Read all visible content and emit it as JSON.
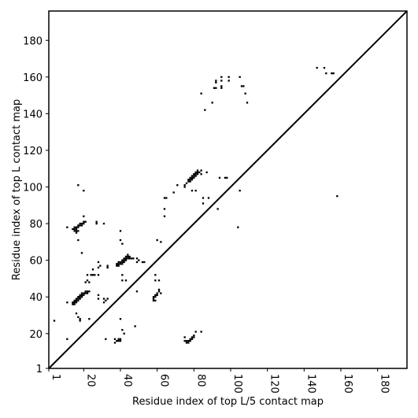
{
  "chart_data": {
    "type": "scatter",
    "xlabel": "Residue index of top L/5 contact map",
    "ylabel": "Residue index of top L contact map",
    "xlim": [
      1,
      196
    ],
    "ylim": [
      1,
      196
    ],
    "x_ticks": [
      1,
      20,
      40,
      60,
      80,
      100,
      120,
      140,
      160,
      180
    ],
    "y_ticks": [
      1,
      20,
      40,
      60,
      80,
      100,
      120,
      140,
      160,
      180
    ],
    "diagonal": true,
    "grid": false,
    "colors": {
      "marker": "#000000",
      "frame": "#000000",
      "background": "#ffffff"
    },
    "series": [
      {
        "points": [
          [
            4,
            27
          ],
          [
            11,
            17
          ],
          [
            11,
            37
          ],
          [
            11,
            78
          ],
          [
            14,
            36
          ],
          [
            14,
            37
          ],
          [
            15,
            36
          ],
          [
            15,
            37
          ],
          [
            15,
            38
          ],
          [
            16,
            37
          ],
          [
            16,
            38
          ],
          [
            16,
            39
          ],
          [
            17,
            38
          ],
          [
            17,
            39
          ],
          [
            17,
            40
          ],
          [
            18,
            39
          ],
          [
            18,
            40
          ],
          [
            18,
            41
          ],
          [
            19,
            40
          ],
          [
            19,
            41
          ],
          [
            19,
            42
          ],
          [
            20,
            41
          ],
          [
            20,
            42
          ],
          [
            21,
            42
          ],
          [
            21,
            43
          ],
          [
            22,
            42
          ],
          [
            22,
            43
          ],
          [
            23,
            43
          ],
          [
            14,
            77
          ],
          [
            15,
            76
          ],
          [
            15,
            77
          ],
          [
            15,
            78
          ],
          [
            16,
            75
          ],
          [
            16,
            76
          ],
          [
            16,
            77
          ],
          [
            16,
            78
          ],
          [
            17,
            76
          ],
          [
            17,
            78
          ],
          [
            17,
            79
          ],
          [
            18,
            79
          ],
          [
            18,
            80
          ],
          [
            19,
            79
          ],
          [
            19,
            80
          ],
          [
            20,
            80
          ],
          [
            20,
            81
          ],
          [
            21,
            81
          ],
          [
            16,
            31
          ],
          [
            17,
            29
          ],
          [
            18,
            27
          ],
          [
            18,
            28
          ],
          [
            20,
            84
          ],
          [
            20,
            98
          ],
          [
            17,
            101
          ],
          [
            17,
            71
          ],
          [
            19,
            64
          ],
          [
            21,
            48
          ],
          [
            22,
            49
          ],
          [
            22,
            52
          ],
          [
            23,
            48
          ],
          [
            24,
            52
          ],
          [
            25,
            52
          ],
          [
            25,
            55
          ],
          [
            26,
            52
          ],
          [
            27,
            81
          ],
          [
            27,
            80
          ],
          [
            28,
            56
          ],
          [
            28,
            59
          ],
          [
            28,
            52
          ],
          [
            29,
            57
          ],
          [
            28,
            41
          ],
          [
            28,
            39
          ],
          [
            31,
            80
          ],
          [
            32,
            17
          ],
          [
            31,
            37
          ],
          [
            31,
            39
          ],
          [
            32,
            38
          ],
          [
            33,
            39
          ],
          [
            33,
            56
          ],
          [
            33,
            57
          ],
          [
            23,
            28
          ],
          [
            37,
            15
          ],
          [
            37,
            17
          ],
          [
            38,
            16
          ],
          [
            39,
            16
          ],
          [
            39,
            17
          ],
          [
            40,
            16
          ],
          [
            40,
            17
          ],
          [
            40,
            28
          ],
          [
            40,
            71
          ],
          [
            40,
            76
          ],
          [
            41,
            22
          ],
          [
            42,
            20
          ],
          [
            38,
            57
          ],
          [
            38,
            58
          ],
          [
            39,
            57
          ],
          [
            39,
            58
          ],
          [
            39,
            59
          ],
          [
            40,
            58
          ],
          [
            40,
            59
          ],
          [
            41,
            58
          ],
          [
            41,
            59
          ],
          [
            41,
            60
          ],
          [
            42,
            59
          ],
          [
            42,
            60
          ],
          [
            42,
            61
          ],
          [
            43,
            60
          ],
          [
            43,
            61
          ],
          [
            43,
            62
          ],
          [
            44,
            61
          ],
          [
            44,
            62
          ],
          [
            44,
            63
          ],
          [
            45,
            61
          ],
          [
            45,
            62
          ],
          [
            46,
            61
          ],
          [
            47,
            61
          ],
          [
            41,
            49
          ],
          [
            41,
            52
          ],
          [
            41,
            69
          ],
          [
            43,
            49
          ],
          [
            48,
            24
          ],
          [
            49,
            43
          ],
          [
            49,
            59
          ],
          [
            49,
            61
          ],
          [
            50,
            60
          ],
          [
            52,
            59
          ],
          [
            53,
            59
          ],
          [
            58,
            38
          ],
          [
            58,
            39
          ],
          [
            58,
            40
          ],
          [
            59,
            38
          ],
          [
            59,
            40
          ],
          [
            59,
            41
          ],
          [
            59,
            49
          ],
          [
            59,
            52
          ],
          [
            60,
            41
          ],
          [
            60,
            42
          ],
          [
            60,
            71
          ],
          [
            61,
            43
          ],
          [
            61,
            44
          ],
          [
            61,
            49
          ],
          [
            62,
            42
          ],
          [
            62,
            70
          ],
          [
            64,
            84
          ],
          [
            64,
            88
          ],
          [
            64,
            94
          ],
          [
            65,
            94
          ],
          [
            69,
            97
          ],
          [
            71,
            101
          ],
          [
            75,
            16
          ],
          [
            75,
            18
          ],
          [
            75,
            100
          ],
          [
            75,
            101
          ],
          [
            76,
            15
          ],
          [
            76,
            16
          ],
          [
            76,
            102
          ],
          [
            77,
            15
          ],
          [
            77,
            16
          ],
          [
            77,
            103
          ],
          [
            77,
            104
          ],
          [
            78,
            16
          ],
          [
            78,
            17
          ],
          [
            78,
            103
          ],
          [
            78,
            104
          ],
          [
            78,
            105
          ],
          [
            79,
            17
          ],
          [
            79,
            18
          ],
          [
            79,
            98
          ],
          [
            79,
            104
          ],
          [
            79,
            105
          ],
          [
            79,
            106
          ],
          [
            80,
            18
          ],
          [
            80,
            19
          ],
          [
            80,
            105
          ],
          [
            80,
            106
          ],
          [
            80,
            107
          ],
          [
            81,
            21
          ],
          [
            81,
            106
          ],
          [
            81,
            107
          ],
          [
            81,
            108
          ],
          [
            81,
            98
          ],
          [
            82,
            107
          ],
          [
            82,
            108
          ],
          [
            82,
            109
          ],
          [
            83,
            108
          ],
          [
            84,
            21
          ],
          [
            84,
            151
          ],
          [
            84,
            107
          ],
          [
            84,
            109
          ],
          [
            85,
            94
          ],
          [
            85,
            91
          ],
          [
            86,
            142
          ],
          [
            87,
            108
          ],
          [
            88,
            94
          ],
          [
            90,
            146
          ],
          [
            91,
            154
          ],
          [
            92,
            154
          ],
          [
            92,
            157
          ],
          [
            92,
            158
          ],
          [
            93,
            88
          ],
          [
            94,
            105
          ],
          [
            95,
            154
          ],
          [
            95,
            155
          ],
          [
            95,
            158
          ],
          [
            95,
            160
          ],
          [
            97,
            105
          ],
          [
            98,
            105
          ],
          [
            99,
            158
          ],
          [
            99,
            160
          ],
          [
            104,
            78
          ],
          [
            105,
            98
          ],
          [
            105,
            160
          ],
          [
            106,
            155
          ],
          [
            107,
            155
          ],
          [
            108,
            151
          ],
          [
            109,
            146
          ],
          [
            147,
            165
          ],
          [
            151,
            165
          ],
          [
            152,
            162
          ],
          [
            155,
            162
          ],
          [
            156,
            162
          ],
          [
            158,
            95
          ]
        ]
      }
    ]
  }
}
